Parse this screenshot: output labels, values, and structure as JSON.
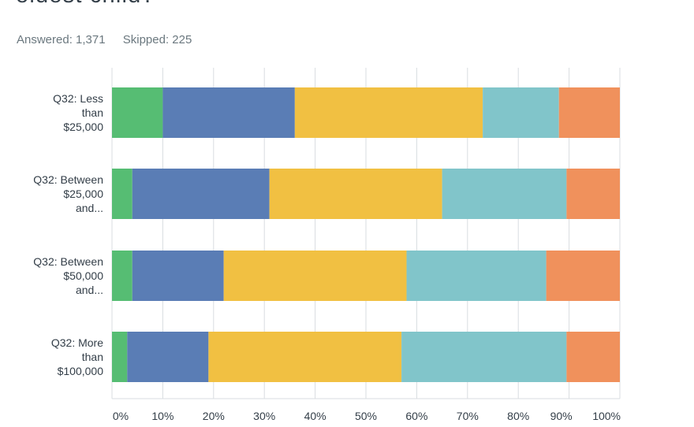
{
  "question": {
    "title_fragment": "oldest child?"
  },
  "stats": {
    "answered": "Answered: 1,371",
    "skipped": "Skipped: 225"
  },
  "chart_data": {
    "type": "bar",
    "orientation": "horizontal",
    "stacked": true,
    "percent": true,
    "categories": [
      [
        "Q32: Less",
        "than",
        "$25,000"
      ],
      [
        "Q32: Between",
        "$25,000",
        "and..."
      ],
      [
        "Q32: Between",
        "$50,000",
        "and..."
      ],
      [
        "Q32: More",
        "than",
        "$100,000"
      ]
    ],
    "series": [
      {
        "color": "#56bd73",
        "values": [
          10,
          4,
          4,
          3
        ]
      },
      {
        "color": "#5a7db5",
        "values": [
          26,
          27,
          18,
          16
        ]
      },
      {
        "color": "#f1c042",
        "values": [
          37,
          34,
          36,
          38
        ]
      },
      {
        "color": "#81c5ca",
        "values": [
          15,
          24.5,
          27.5,
          32.5
        ]
      },
      {
        "color": "#f0915c",
        "values": [
          12,
          10.5,
          14.5,
          10.5
        ]
      }
    ],
    "xlim": [
      0,
      100
    ],
    "xticks": [
      "0%",
      "10%",
      "20%",
      "30%",
      "40%",
      "50%",
      "60%",
      "70%",
      "80%",
      "90%",
      "100%"
    ],
    "grid": true
  }
}
